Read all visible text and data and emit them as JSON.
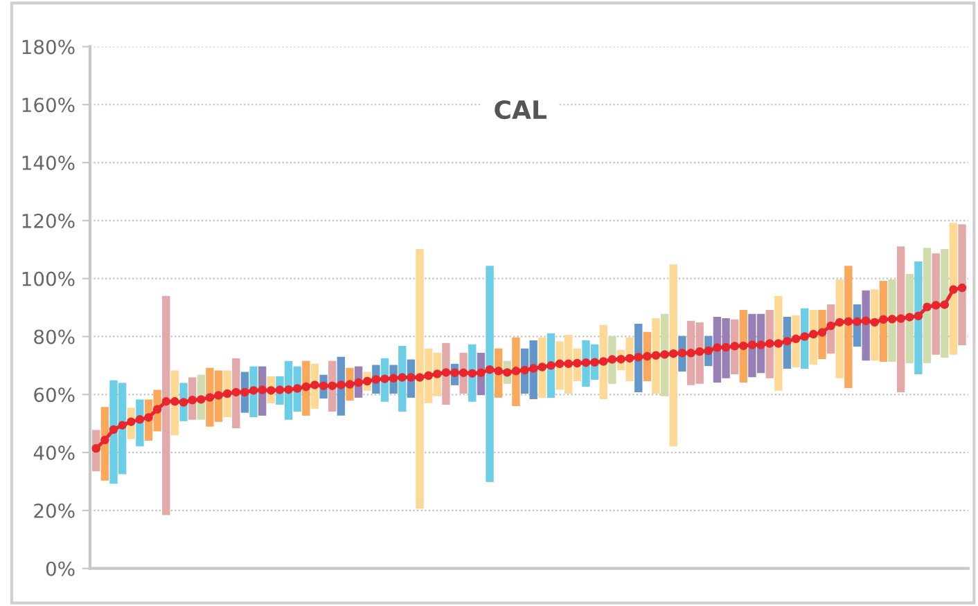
{
  "chart_data": {
    "type": "bar",
    "title": "CAL",
    "categories": [
      null,
      null,
      null,
      null,
      null,
      null,
      null,
      null,
      null,
      null,
      null,
      null,
      null,
      null,
      null,
      null,
      null,
      null,
      null,
      null,
      null,
      null,
      null,
      null,
      null,
      null,
      null,
      null,
      null,
      null,
      null,
      null,
      null,
      null,
      null,
      null,
      null,
      null,
      null,
      null,
      null,
      null,
      null,
      null,
      null,
      null,
      null,
      null,
      null,
      null,
      null,
      null,
      null,
      null,
      null,
      null,
      null,
      null,
      null,
      null,
      null,
      null,
      null,
      null,
      null,
      null,
      null,
      null,
      null,
      null,
      null,
      null,
      null,
      null,
      null,
      null,
      null,
      null,
      null,
      null,
      null,
      null,
      null,
      null,
      null,
      null,
      null,
      null,
      null,
      null,
      null,
      null,
      null,
      null,
      null,
      null,
      null,
      null,
      null,
      null
    ],
    "series": [
      {
        "base": [
          33.5,
          30.3,
          29.2,
          32.5,
          44.6,
          42.1,
          44.1,
          47.3,
          18.4,
          46.0,
          50.8,
          51.3,
          51.3,
          48.9,
          50.6,
          52.2,
          48.4,
          53.7,
          52.2,
          52.7,
          57.0,
          56.5,
          51.3,
          54.1,
          52.7,
          55.1,
          58.6,
          54.1,
          52.7,
          57.9,
          58.9,
          61.3,
          60.3,
          57.5,
          60.3,
          54.1,
          58.9,
          20.6,
          57.0,
          59.4,
          56.5,
          63.2,
          60.3,
          57.5,
          59.8,
          29.8,
          58.9,
          63.7,
          56.0,
          60.3,
          58.4,
          58.9,
          58.9,
          61.7,
          60.3,
          64.6,
          62.7,
          65.1,
          58.4,
          63.7,
          68.4,
          64.6,
          60.8,
          64.6,
          60.3,
          59.4,
          42.1,
          67.9,
          63.2,
          63.7,
          69.8,
          64.1,
          65.6,
          67.0,
          64.1,
          66.0,
          67.4,
          65.6,
          61.3,
          68.9,
          69.4,
          68.9,
          70.3,
          72.2,
          74.1,
          65.6,
          62.2,
          76.5,
          71.7,
          71.7,
          71.3,
          71.3,
          60.8,
          70.8,
          67.0,
          70.8,
          73.7,
          72.7,
          73.7,
          77.0
        ],
        "values": [
          14.3,
          25.4,
          35.7,
          31.5,
          10.8,
          16.2,
          14.2,
          14.3,
          75.6,
          22.3,
          13.2,
          14.6,
          15.5,
          20.3,
          17.7,
          16.1,
          24.1,
          14.1,
          17.5,
          17.0,
          9.3,
          9.8,
          20.3,
          15.6,
          18.9,
          15.5,
          8.2,
          17.5,
          20.3,
          11.3,
          10.8,
          6.5,
          9.9,
          15.0,
          9.9,
          22.7,
          13.2,
          89.6,
          18.9,
          15.0,
          21.3,
          7.4,
          14.1,
          19.8,
          14.6,
          74.6,
          17.0,
          7.9,
          23.7,
          15.6,
          20.3,
          20.8,
          22.2,
          16.6,
          20.3,
          11.3,
          16.0,
          12.2,
          25.6,
          16.5,
          7.0,
          15.1,
          23.6,
          17.0,
          26.0,
          28.4,
          62.8,
          12.3,
          22.2,
          21.2,
          10.4,
          22.7,
          20.7,
          18.9,
          25.1,
          21.8,
          20.4,
          23.6,
          32.7,
          17.9,
          17.9,
          20.8,
          18.9,
          17.0,
          17.0,
          34.1,
          42.2,
          14.6,
          24.2,
          24.6,
          27.9,
          28.4,
          50.3,
          30.8,
          38.9,
          39.8,
          35.0,
          37.5,
          45.5,
          41.7
        ],
        "colors": [
          "#e3a8a8",
          "#f9a85c",
          "#6bcde6",
          "#6bcde6",
          "#fed895",
          "#6bcde6",
          "#f9a85c",
          "#f9a85c",
          "#e3a8a8",
          "#fed895",
          "#6bcde6",
          "#e3a8a8",
          "#cfdcae",
          "#f9a85c",
          "#f9a85c",
          "#fed895",
          "#e3a8a8",
          "#6497c9",
          "#6bcde6",
          "#9680b5",
          "#fed895",
          "#6bcde6",
          "#6bcde6",
          "#6bcde6",
          "#f9a85c",
          "#fed895",
          "#6497c9",
          "#e3a8a8",
          "#6497c9",
          "#f9a85c",
          "#9680b5",
          "#fed895",
          "#6497c9",
          "#6bcde6",
          "#6497c9",
          "#6bcde6",
          "#6497c9",
          "#fed895",
          "#fed895",
          "#fed895",
          "#e3a8a8",
          "#6497c9",
          "#e3a8a8",
          "#6bcde6",
          "#9680b5",
          "#6bcde6",
          "#f9a85c",
          "#cfdcae",
          "#f9a85c",
          "#6497c9",
          "#6497c9",
          "#fed895",
          "#6bcde6",
          "#fed895",
          "#fed895",
          "#fed895",
          "#6bcde6",
          "#6bcde6",
          "#fed895",
          "#cfdcae",
          "#fed895",
          "#fed895",
          "#6497c9",
          "#f9a85c",
          "#fed895",
          "#cfdcae",
          "#fed895",
          "#6497c9",
          "#e3a8a8",
          "#e3a8a8",
          "#6497c9",
          "#9680b5",
          "#9680b5",
          "#e3a8a8",
          "#f9a85c",
          "#9680b5",
          "#9680b5",
          "#e3a8a8",
          "#fed895",
          "#6497c9",
          "#fed895",
          "#6bcde6",
          "#fed895",
          "#f9a85c",
          "#e3a8a8",
          "#fed895",
          "#f9a85c",
          "#6497c9",
          "#9680b5",
          "#fed895",
          "#f9a85c",
          "#cfdcae",
          "#e3a8a8",
          "#cfdcae",
          "#6bcde6",
          "#cfdcae",
          "#e3a8a8",
          "#cfdcae",
          "#fed895",
          "#e3a8a8"
        ]
      },
      {
        "type": "line",
        "color": "#e8262b",
        "marker": "circle",
        "line_style": "solid",
        "values": [
          41.4,
          44.3,
          47.9,
          49.4,
          50.6,
          51.4,
          52.1,
          54.9,
          57.6,
          57.6,
          57.3,
          58.1,
          58.3,
          59.0,
          59.7,
          60.3,
          60.8,
          60.8,
          61.4,
          61.6,
          61.4,
          61.6,
          61.7,
          62.1,
          62.7,
          63.3,
          63.0,
          63.0,
          63.3,
          63.5,
          64.1,
          64.6,
          65.2,
          65.4,
          65.6,
          65.9,
          65.9,
          65.9,
          66.5,
          67.1,
          67.6,
          67.5,
          67.5,
          67.3,
          67.5,
          68.6,
          68.1,
          67.6,
          68.1,
          68.4,
          69.0,
          69.5,
          70.0,
          70.6,
          70.6,
          70.8,
          71.0,
          71.1,
          71.4,
          72.1,
          72.2,
          72.5,
          72.9,
          73.2,
          73.5,
          73.8,
          74.1,
          74.3,
          74.3,
          74.8,
          75.1,
          76.2,
          76.3,
          76.7,
          76.8,
          77.1,
          77.1,
          77.6,
          77.6,
          78.4,
          79.2,
          80.0,
          80.8,
          81.4,
          83.7,
          84.9,
          85.2,
          85.1,
          85.4,
          84.9,
          85.9,
          86.0,
          86.2,
          86.7,
          87.1,
          90.2,
          90.8,
          91.0,
          96.2,
          96.8
        ]
      }
    ],
    "ylim": [
      0,
      180
    ],
    "yticks": [
      {
        "value": 0,
        "label": "0%"
      },
      {
        "value": 20,
        "label": "20%"
      },
      {
        "value": 40,
        "label": "40%"
      },
      {
        "value": 60,
        "label": "60%"
      },
      {
        "value": 80,
        "label": "80%"
      },
      {
        "value": 100,
        "label": "100%"
      },
      {
        "value": 120,
        "label": "120%"
      },
      {
        "value": 140,
        "label": "140%"
      },
      {
        "value": 160,
        "label": "160%"
      },
      {
        "value": 180,
        "label": "180%"
      }
    ],
    "grid": "y",
    "tick_labels": "y"
  }
}
